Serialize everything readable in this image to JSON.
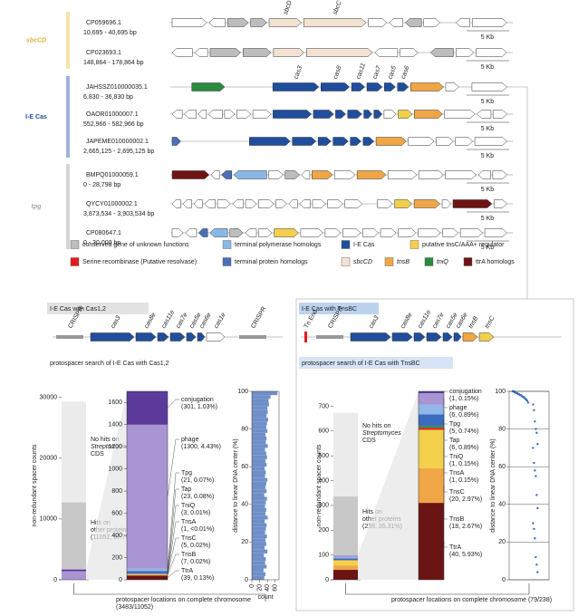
{
  "loci_panel": {
    "groups": [
      {
        "label": "sbcCD",
        "color": "#f5e3a6",
        "text_color": "#e3b23c",
        "loci": [
          {
            "id": "CP059696.1",
            "range": "10,695 - 40,695 bp",
            "scale": "5 Kb",
            "gene_labels": [
              "sbcD",
              "sbcC"
            ]
          },
          {
            "id": "CP023693.1",
            "range": "148,864 - 178,864 bp",
            "scale": "5 Kb",
            "gene_labels": []
          }
        ]
      },
      {
        "label": "I-E Cas",
        "color": "#9fb3d9",
        "text_color": "#1f4e9c",
        "loci": [
          {
            "id": "JAHSSZ010000035.1",
            "range": "6,830 - 36,830 bp",
            "scale": "5 Kb",
            "gene_labels": [
              "cas3",
              "cas8",
              "cas11",
              "cas7",
              "cas5",
              "cas6"
            ]
          },
          {
            "id": "OAOR01000007.1",
            "range": "552,966 - 582,966 bp",
            "scale": "5 Kb",
            "gene_labels": []
          },
          {
            "id": "JAPEME010000002.1",
            "range": "2,665,125 - 2,695,125 bp",
            "scale": "5 Kb",
            "gene_labels": []
          }
        ]
      },
      {
        "label": "tpg",
        "color": "#d6d6d6",
        "text_color": "#a8a8a8",
        "loci": [
          {
            "id": "BMPQ01000059.1",
            "range": "0 - 28,798 bp",
            "scale": "5 Kb",
            "gene_labels": []
          },
          {
            "id": "QYCY01000002.1",
            "range": "3,873,534 - 3,903,534 bp",
            "scale": "5 Kb",
            "gene_labels": []
          },
          {
            "id": "CP080647.1",
            "range": "0 - 30,000 bp",
            "scale": "5 Kb",
            "gene_labels": []
          }
        ]
      }
    ]
  },
  "legend": [
    {
      "label": "conserved gene of unknown functions",
      "color": "#bdbdbd"
    },
    {
      "label": "terminal polymerase homologs",
      "color": "#8ab8e6"
    },
    {
      "label": "I-E Cas",
      "color": "#1f4e9c"
    },
    {
      "label": "putative tnsC/AAA+ regulator",
      "color": "#f2d04c"
    },
    {
      "label": "Serine recombinase (Putative resolvase)",
      "color": "#e41a1c"
    },
    {
      "label": "terminal protein homologs",
      "color": "#4a6fb5"
    },
    {
      "label": "sbcCD",
      "color": "#f3e2d2"
    },
    {
      "label": "tnsB",
      "color": "#f0a646"
    },
    {
      "label": "tniQ",
      "color": "#2b8a3e"
    },
    {
      "label": "ttrA homologs",
      "color": "#6e1414"
    }
  ],
  "panels": [
    {
      "title": "I-E Cas with Cas1,2",
      "operon_labels": [
        "CRISPR",
        "cas3",
        "cas8e",
        "cas11e",
        "cas7e",
        "cas5e",
        "cas6e",
        "cas1e",
        "CRISPR"
      ],
      "search_title": "protospacer search of I-E Cas with Cas1,2",
      "y_label": "non-redundant spacer counts",
      "overview": {
        "ylim": [
          0,
          31000
        ],
        "yticks": [
          0,
          10000,
          20000,
          30000
        ],
        "values": [
          11052,
          16564
        ],
        "colors": [
          "#c8c8c8",
          "#ebebeb"
        ],
        "hits_label": [
          "Hits on",
          "other proteins",
          "(11052, 37.70%)"
        ],
        "no_hits_label": [
          "No hits on",
          "Streptomyces",
          "CDS"
        ]
      },
      "zoom": {
        "ylim": [
          0,
          1700
        ],
        "yticks": [
          0,
          200,
          400,
          600,
          800,
          1000,
          1200,
          1400,
          1600
        ],
        "names": [
          "conjugation",
          "phage",
          "Tpg",
          "Tap",
          "TniQ",
          "TnsA",
          "TnsC",
          "TnsB",
          "TtrA"
        ],
        "values": [
          301,
          1300,
          21,
          23,
          3,
          1,
          5,
          7,
          39
        ],
        "value_labels": [
          "(301, 1.03%)",
          "(1300, 4.43%)",
          "(21, 0.07%)",
          "(23, 0.08%)",
          "(3, 0.01%)",
          "(1, <0.01%)",
          "(5, 0.02%)",
          "(7, 0.02%)",
          "(39, 0.13%)"
        ],
        "colors": [
          "#5b3a9a",
          "#a994d4",
          "#8fb8e6",
          "#3b6cc0",
          "#2b8a3e",
          "#e41a1c",
          "#f2d04c",
          "#f0a646",
          "#6b1414"
        ]
      },
      "distance": {
        "y_label": "distance to linear DNA center (%)",
        "x_label": "count",
        "ylim": [
          0,
          100
        ],
        "yticks": [
          0,
          20,
          40,
          60,
          80,
          100
        ],
        "xlim": [
          0,
          70
        ],
        "xticks": [
          0,
          20,
          40,
          60
        ],
        "bins": [
          0,
          2,
          4,
          6,
          8,
          10,
          12,
          14,
          16,
          18,
          20,
          22,
          24,
          26,
          28,
          30,
          32,
          34,
          36,
          38,
          40,
          42,
          44,
          46,
          48,
          50,
          52,
          54,
          56,
          58,
          60,
          62,
          64,
          66,
          68,
          70,
          72,
          74,
          76,
          78,
          80,
          82,
          84,
          86,
          88,
          90,
          92,
          94,
          96,
          98,
          100
        ],
        "counts": [
          32,
          35,
          30,
          38,
          34,
          36,
          31,
          40,
          33,
          37,
          35,
          39,
          34,
          36,
          38,
          33,
          41,
          35,
          37,
          34,
          36,
          39,
          32,
          38,
          35,
          37,
          40,
          34,
          36,
          33,
          38,
          35,
          39,
          37,
          34,
          41,
          36,
          38,
          35,
          40,
          37,
          39,
          42,
          38,
          41,
          40,
          44,
          43,
          48,
          66
        ]
      },
      "footer": [
        "protospacer locations on complete chromosome",
        "(3483/11052)"
      ]
    },
    {
      "title": "I-E Cas with TnsBC",
      "operon_labels": [
        "Tn End",
        "CRISPR",
        "cas3",
        "cas8e",
        "cas11e",
        "cas7e",
        "cas5e",
        "cas6e",
        "tnsB",
        "tnsC"
      ],
      "search_title": "protospacer search of I-E Cas with TnsBC",
      "y_label": "non-redundant spacer counts",
      "overview": {
        "ylim": [
          0,
          760
        ],
        "yticks": [
          0,
          100,
          200,
          300,
          400,
          500,
          600,
          700
        ],
        "values": [
          238,
          338
        ],
        "colors": [
          "#c8c8c8",
          "#ebebeb"
        ],
        "hits_label": [
          "Hits on",
          "other proteins",
          "(238, 35.31%)"
        ],
        "no_hits_label": [
          "No hits on",
          "Streptomyces",
          "CDS"
        ]
      },
      "zoom": {
        "ylim": [
          0,
          98
        ],
        "names": [
          "conjugation",
          "phage",
          "Tpg",
          "Tap",
          "TniQ",
          "TnsA",
          "TnsC",
          "TnsB",
          "TtrA"
        ],
        "values": [
          1,
          6,
          5,
          6,
          1,
          1,
          20,
          18,
          40
        ],
        "value_labels": [
          "(1, 0.15%)",
          "(6, 0.89%)",
          "(5, 0.74%)",
          "(6, 0.89%)",
          "(1, 0.15%)",
          "(1, 0.15%)",
          "(20, 2.97%)",
          "(18, 2.67%)",
          "(40, 5.93%)"
        ],
        "colors": [
          "#5b3a9a",
          "#a994d4",
          "#8fb8e6",
          "#3b6cc0",
          "#2b8a3e",
          "#e41a1c",
          "#f2d04c",
          "#f0a646",
          "#6b1414"
        ]
      },
      "distance": {
        "y_label": "distance to linear DNA center (%)",
        "ylim": [
          0,
          100
        ],
        "yticks": [
          0,
          20,
          40,
          60,
          80,
          100
        ],
        "values": [
          100,
          100,
          99.5,
          99.5,
          99,
          99,
          98.5,
          98.5,
          98,
          98,
          97.5,
          97,
          97,
          96.5,
          96,
          95.5,
          95,
          94,
          93,
          90,
          84,
          80,
          78,
          72,
          70,
          62,
          58,
          55,
          45,
          38,
          30,
          27,
          22,
          12,
          8,
          4
        ]
      },
      "footer": [
        "protospacer locations on complete chromosome (79/238)"
      ]
    }
  ]
}
